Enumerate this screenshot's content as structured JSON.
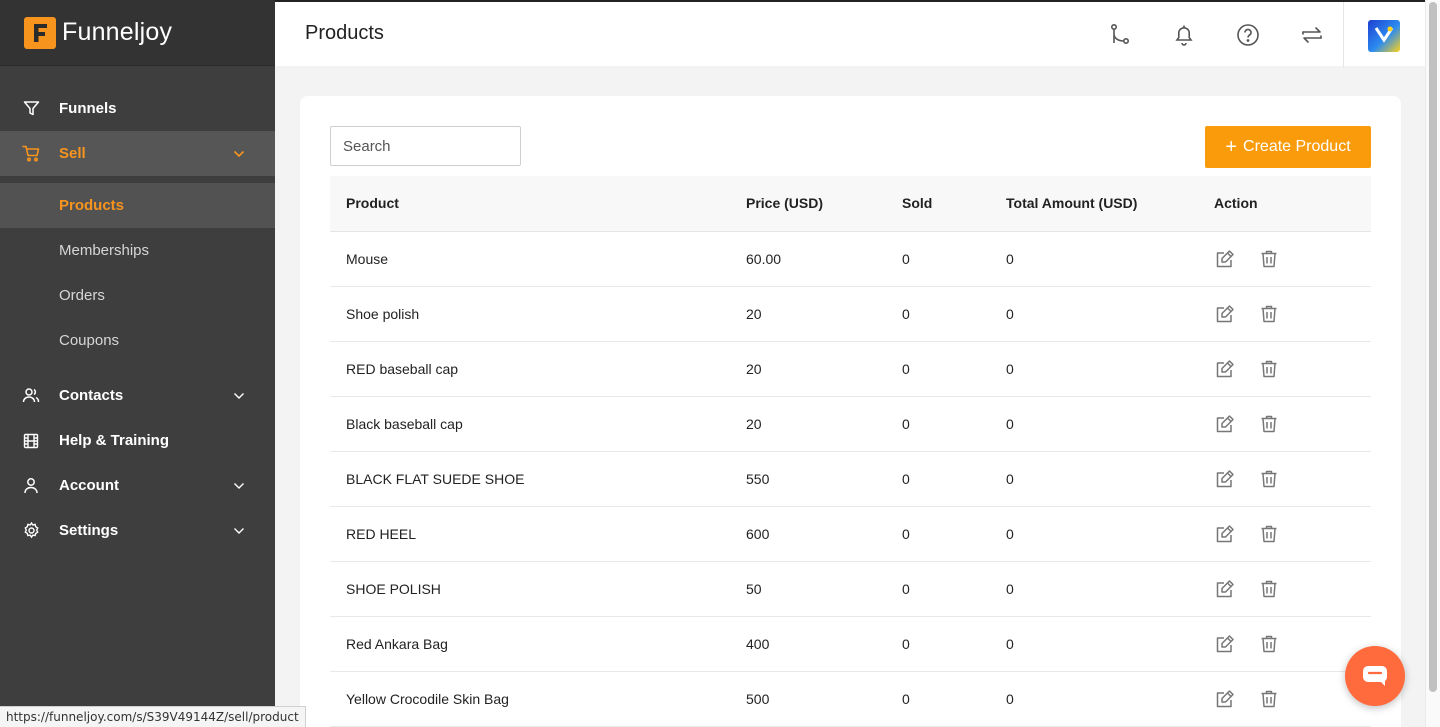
{
  "brand": {
    "name": "Funneljoy",
    "accent": "#f7941d"
  },
  "sidebar": {
    "items": [
      {
        "label": "Funnels",
        "icon": "filter-icon"
      },
      {
        "label": "Sell",
        "icon": "cart-icon",
        "expanded": true
      },
      {
        "label": "Contacts",
        "icon": "users-icon"
      },
      {
        "label": "Help & Training",
        "icon": "film-icon"
      },
      {
        "label": "Account",
        "icon": "user-icon"
      },
      {
        "label": "Settings",
        "icon": "gear-icon"
      }
    ],
    "sell_sub": [
      "Products",
      "Memberships",
      "Orders",
      "Coupons"
    ]
  },
  "header": {
    "title": "Products",
    "icons": [
      "branch-icon",
      "bell-icon",
      "help-icon",
      "sync-icon",
      "avatar"
    ]
  },
  "toolbar": {
    "search_placeholder": "Search",
    "create_label": "Create Product"
  },
  "table": {
    "columns": [
      "Product",
      "Price (USD)",
      "Sold",
      "Total Amount (USD)",
      "Action"
    ],
    "rows": [
      {
        "product": "Mouse",
        "price": "60.00",
        "sold": "0",
        "total": "0"
      },
      {
        "product": "Shoe polish",
        "price": "20",
        "sold": "0",
        "total": "0"
      },
      {
        "product": "RED baseball cap",
        "price": "20",
        "sold": "0",
        "total": "0"
      },
      {
        "product": "Black baseball cap",
        "price": "20",
        "sold": "0",
        "total": "0"
      },
      {
        "product": "BLACK FLAT SUEDE SHOE",
        "price": "550",
        "sold": "0",
        "total": "0"
      },
      {
        "product": "RED HEEL",
        "price": "600",
        "sold": "0",
        "total": "0"
      },
      {
        "product": "SHOE POLISH",
        "price": "50",
        "sold": "0",
        "total": "0"
      },
      {
        "product": "Red Ankara Bag",
        "price": "400",
        "sold": "0",
        "total": "0"
      },
      {
        "product": "Yellow Crocodile Skin Bag",
        "price": "500",
        "sold": "0",
        "total": "0"
      }
    ]
  },
  "status_url": "https://funneljoy.com/s/S39V49144Z/sell/product"
}
